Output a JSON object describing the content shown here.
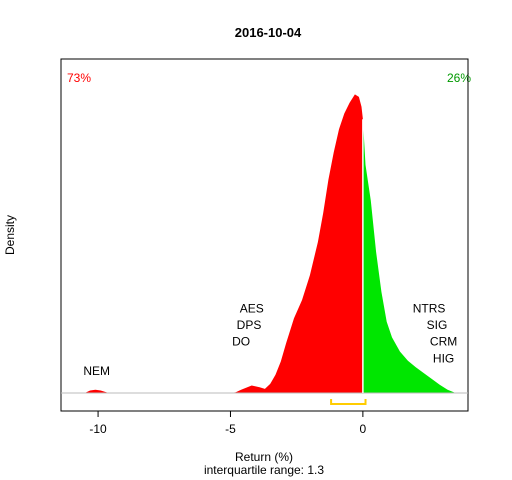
{
  "chart_data": {
    "type": "area",
    "title": "2016-10-04",
    "xlabel": "Return (%)",
    "subtitle": "interquartile range: 1.3",
    "ylabel": "Density",
    "xlim": [
      -11.4,
      3.97
    ],
    "ylim": [
      0,
      0.387
    ],
    "x_ticks": [
      -10,
      -5,
      0
    ],
    "x_tick_labels": [
      "-10",
      "-5",
      "0"
    ],
    "negative_pct": "73%",
    "positive_pct": "26%",
    "negative_color": "#ff0000",
    "positive_color": "#00e600",
    "iqr": {
      "start": -1.2,
      "end": 0.1,
      "color": "#ffcc00"
    },
    "density_curve": [
      [
        -10.5,
        0
      ],
      [
        -10.3,
        0.003
      ],
      [
        -10.1,
        0.004
      ],
      [
        -9.9,
        0.003
      ],
      [
        -9.6,
        0
      ],
      [
        -5.0,
        0
      ],
      [
        -4.8,
        0.001
      ],
      [
        -4.6,
        0.004
      ],
      [
        -4.2,
        0.009
      ],
      [
        -3.9,
        0.007
      ],
      [
        -3.7,
        0.005
      ],
      [
        -3.5,
        0.011
      ],
      [
        -3.3,
        0.022
      ],
      [
        -3.1,
        0.038
      ],
      [
        -2.9,
        0.06
      ],
      [
        -2.6,
        0.09
      ],
      [
        -2.3,
        0.112
      ],
      [
        -2.0,
        0.142
      ],
      [
        -1.7,
        0.182
      ],
      [
        -1.5,
        0.217
      ],
      [
        -1.3,
        0.257
      ],
      [
        -1.1,
        0.29
      ],
      [
        -0.9,
        0.318
      ],
      [
        -0.7,
        0.337
      ],
      [
        -0.5,
        0.35
      ],
      [
        -0.3,
        0.36
      ],
      [
        -0.15,
        0.357
      ],
      [
        -0.05,
        0.345
      ],
      [
        0.0,
        0.33
      ],
      [
        0.1,
        0.275
      ],
      [
        0.3,
        0.232
      ],
      [
        0.5,
        0.17
      ],
      [
        0.7,
        0.122
      ],
      [
        0.9,
        0.086
      ],
      [
        1.1,
        0.067
      ],
      [
        1.4,
        0.05
      ],
      [
        1.7,
        0.039
      ],
      [
        2.0,
        0.031
      ],
      [
        2.3,
        0.024
      ],
      [
        2.6,
        0.017
      ],
      [
        2.9,
        0.01
      ],
      [
        3.2,
        0.004
      ],
      [
        3.5,
        0
      ]
    ],
    "annotations": [
      {
        "text": "NEM",
        "x": -10.05,
        "y": 0.022
      },
      {
        "text": "AES",
        "x": -4.2,
        "y": 0.097
      },
      {
        "text": "DPS",
        "x": -4.3,
        "y": 0.077
      },
      {
        "text": "DO",
        "x": -4.6,
        "y": 0.057
      },
      {
        "text": "NTRS",
        "x": 2.5,
        "y": 0.097
      },
      {
        "text": "SIG",
        "x": 2.8,
        "y": 0.077
      },
      {
        "text": "CRM",
        "x": 3.05,
        "y": 0.057
      },
      {
        "text": "HIG",
        "x": 3.05,
        "y": 0.037
      }
    ]
  }
}
